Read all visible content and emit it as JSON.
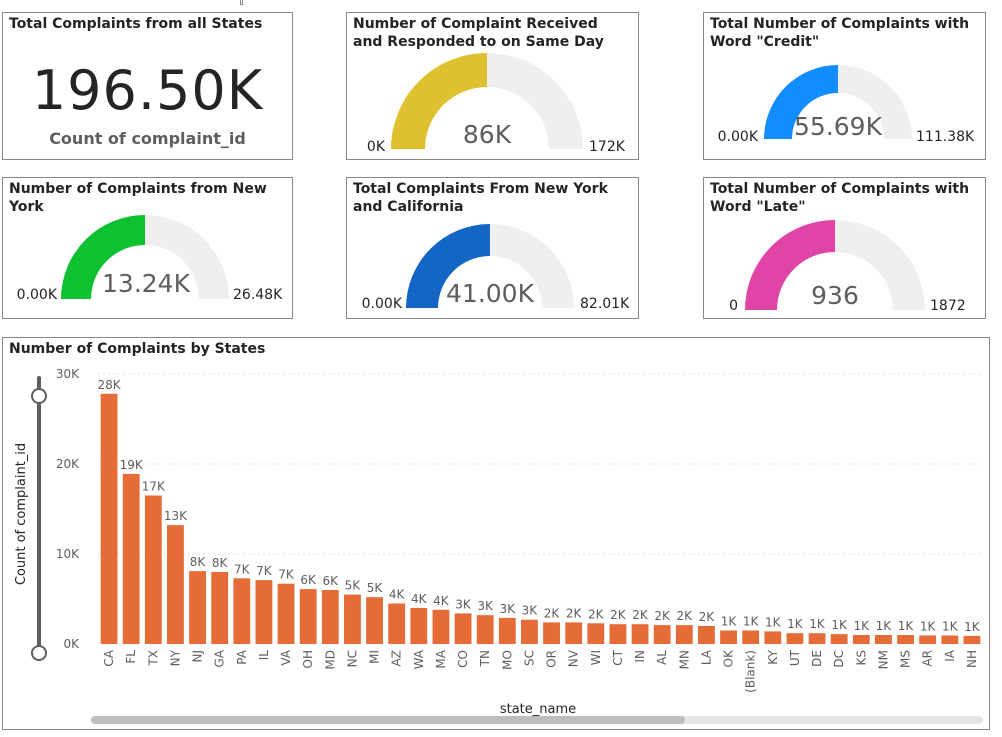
{
  "kpi": {
    "title": "Total Complaints from all States",
    "value": "196.50K",
    "label": "Count of complaint_id"
  },
  "gauges": [
    {
      "id": "same-day",
      "title": "Number of Complaint Received and Responded to on Same Day",
      "min_label": "0K",
      "value_label": "86K",
      "max_label": "172K",
      "fraction": 0.5,
      "color": "#DFC12F"
    },
    {
      "id": "credit",
      "title": "Total Number of Complaints with Word \"Credit\"",
      "min_label": "0.00K",
      "value_label": "55.69K",
      "max_label": "111.38K",
      "fraction": 0.5,
      "color": "#118DFF"
    },
    {
      "id": "new-york",
      "title": "Number of Complaints from New York",
      "min_label": "0.00K",
      "value_label": "13.24K",
      "max_label": "26.48K",
      "fraction": 0.5,
      "color": "#0DC131"
    },
    {
      "id": "ny-ca",
      "title": "Total Complaints From New York and California",
      "min_label": "0.00K",
      "value_label": "41.00K",
      "max_label": "82.01K",
      "fraction": 0.5,
      "color": "#1366C4"
    },
    {
      "id": "late",
      "title": "Total Number of Complaints with Word \"Late\"",
      "min_label": "0",
      "value_label": "936",
      "max_label": "1872",
      "fraction": 0.5,
      "color": "#E044A7"
    }
  ],
  "colors": {
    "gauge_track": "#F0EFEE",
    "bar": "#E66C37",
    "gridline": "#E1DFDD",
    "slider": "#605e5c",
    "scrollbar_track": "#E6E6E6",
    "scrollbar_thumb": "#BDBDBD"
  },
  "chart_data": {
    "type": "bar",
    "title": "Number of Complaints by States",
    "xlabel": "state_name",
    "ylabel": "Count of complaint_id",
    "ylim": [
      0,
      30000
    ],
    "yticks": [
      {
        "value": 0,
        "label": "0K"
      },
      {
        "value": 10000,
        "label": "10K"
      },
      {
        "value": 20000,
        "label": "20K"
      },
      {
        "value": 30000,
        "label": "30K"
      }
    ],
    "grid": true,
    "categories": [
      "CA",
      "FL",
      "TX",
      "NY",
      "NJ",
      "GA",
      "PA",
      "IL",
      "VA",
      "OH",
      "MD",
      "NC",
      "MI",
      "AZ",
      "WA",
      "MA",
      "CO",
      "TN",
      "MO",
      "SC",
      "OR",
      "NV",
      "WI",
      "CT",
      "IN",
      "AL",
      "MN",
      "LA",
      "OK",
      "(Blank)",
      "KY",
      "UT",
      "DE",
      "DC",
      "KS",
      "NM",
      "MS",
      "AR",
      "IA",
      "NH"
    ],
    "values": [
      27800,
      18900,
      16500,
      13200,
      8100,
      8000,
      7300,
      7100,
      6700,
      6100,
      6000,
      5500,
      5200,
      4500,
      4000,
      3800,
      3400,
      3200,
      2900,
      2700,
      2400,
      2400,
      2300,
      2200,
      2200,
      2100,
      2100,
      2000,
      1500,
      1500,
      1400,
      1200,
      1200,
      1100,
      1000,
      1000,
      1000,
      950,
      950,
      900
    ],
    "data_labels": [
      "28K",
      "19K",
      "17K",
      "13K",
      "8K",
      "8K",
      "7K",
      "7K",
      "7K",
      "6K",
      "6K",
      "5K",
      "5K",
      "4K",
      "4K",
      "4K",
      "3K",
      "3K",
      "3K",
      "3K",
      "2K",
      "2K",
      "2K",
      "2K",
      "2K",
      "2K",
      "2K",
      "2K",
      "1K",
      "1K",
      "1K",
      "1K",
      "1K",
      "1K",
      "1K",
      "1K",
      "1K",
      "1K",
      "1K",
      "1K"
    ]
  }
}
